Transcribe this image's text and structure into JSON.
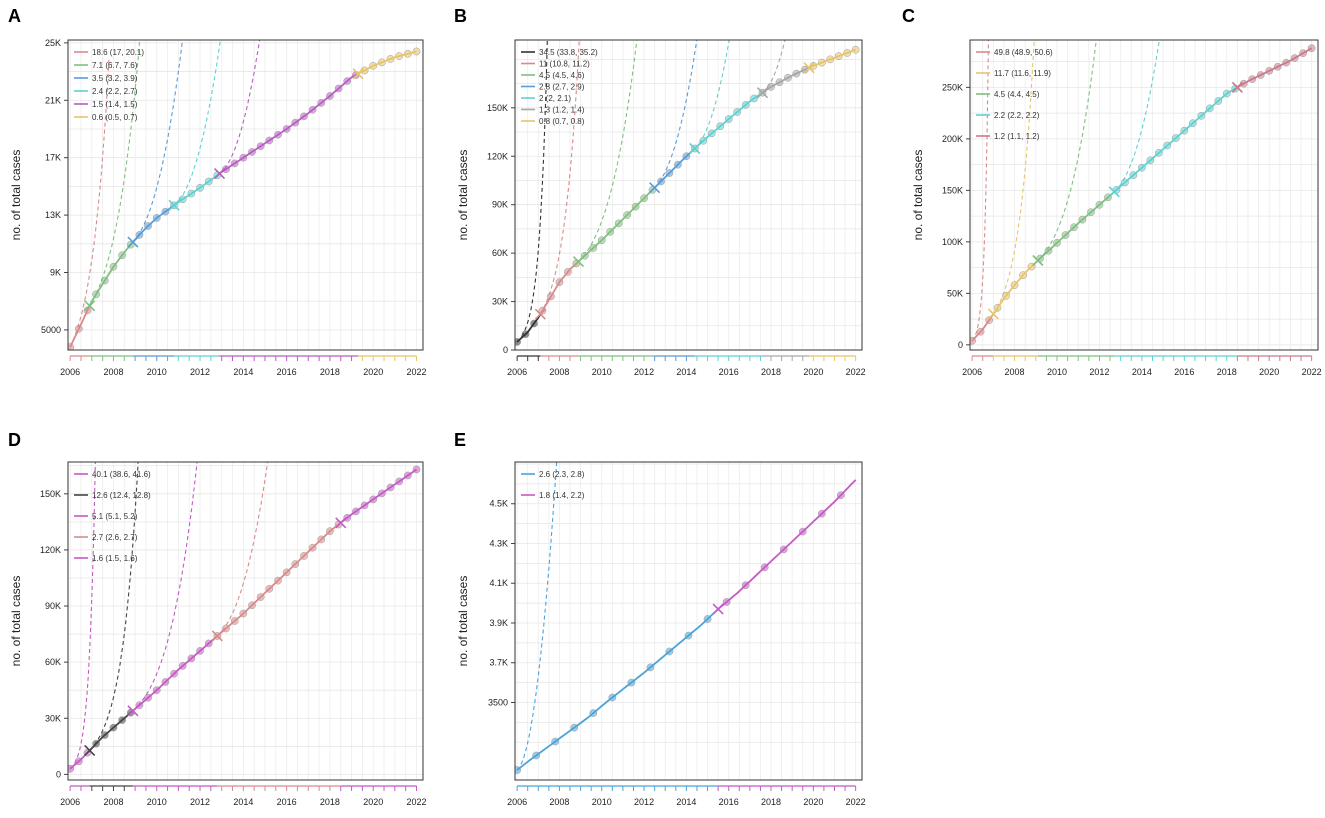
{
  "figure": {
    "panel_letters": [
      "A",
      "B",
      "C",
      "D",
      "E"
    ]
  },
  "chart_data": [
    {
      "panel": "A",
      "type": "line",
      "ylabel": "no. of total cases",
      "xlabel": "",
      "x_ticks": [
        2006,
        2008,
        2010,
        2012,
        2014,
        2016,
        2018,
        2020,
        2022
      ],
      "x_tick_labels": [
        "2006",
        "2008",
        "2010",
        "2012",
        "2014",
        "2016",
        "2018",
        "2020",
        "2022"
      ],
      "y_ticks": [
        5000,
        9000,
        13000,
        17000,
        21000,
        25000
      ],
      "y_tick_labels": [
        "5000",
        "9K",
        "13K",
        "17K",
        "21K",
        "25K"
      ],
      "xlim": [
        2005.9,
        2022.3
      ],
      "ylim": [
        3600,
        25200
      ],
      "obs_x_range": [
        2006,
        2022
      ],
      "curve": [
        [
          2006,
          3800
        ],
        [
          2006.5,
          5400
        ],
        [
          2007,
          7000
        ],
        [
          2007.5,
          8200
        ],
        [
          2008,
          9400
        ],
        [
          2008.5,
          10400
        ],
        [
          2009,
          11300
        ],
        [
          2009.5,
          12100
        ],
        [
          2010,
          12800
        ],
        [
          2011,
          13900
        ],
        [
          2012,
          14900
        ],
        [
          2013,
          16000
        ],
        [
          2014,
          17000
        ],
        [
          2015,
          18000
        ],
        [
          2016,
          19000
        ],
        [
          2017,
          20100
        ],
        [
          2018,
          21300
        ],
        [
          2019,
          22600
        ],
        [
          2020,
          23400
        ],
        [
          2021,
          24000
        ],
        [
          2022,
          24400
        ]
      ],
      "segments": [
        {
          "label": "18.6 (17, 20.1)",
          "color": "#d98a8a",
          "x0": 2006,
          "x1": 2006.9,
          "proj_to": 2007.8
        },
        {
          "label": "7.1 (6.7, 7.6)",
          "color": "#7fbf7f",
          "x0": 2006.9,
          "x1": 2008.9,
          "proj_to": 2010.8
        },
        {
          "label": "3.5 (3.2, 3.9)",
          "color": "#5b9bd5",
          "x0": 2008.9,
          "x1": 2010.8,
          "proj_to": 2015.0
        },
        {
          "label": "2.4 (2.2, 2.7)",
          "color": "#5fd0d0",
          "x0": 2010.8,
          "x1": 2012.9,
          "proj_to": 2018.0
        },
        {
          "label": "1.5 (1.4, 1.5)",
          "color": "#b85cc4",
          "x0": 2012.9,
          "x1": 2019.3,
          "proj_to": 2021.5
        },
        {
          "label": "0.6 (0.5, 0.7)",
          "color": "#e8c468",
          "x0": 2019.3,
          "x1": 2022,
          "proj_to": 2022
        }
      ]
    },
    {
      "panel": "B",
      "type": "line",
      "ylabel": "no. of total cases",
      "xlabel": "",
      "x_ticks": [
        2006,
        2008,
        2010,
        2012,
        2014,
        2016,
        2018,
        2020,
        2022
      ],
      "x_tick_labels": [
        "2006",
        "2008",
        "2010",
        "2012",
        "2014",
        "2016",
        "2018",
        "2020",
        "2022"
      ],
      "y_ticks": [
        0,
        30000,
        60000,
        90000,
        120000,
        150000
      ],
      "y_tick_labels": [
        "0",
        "30K",
        "60K",
        "90K",
        "120K",
        "150K"
      ],
      "xlim": [
        2005.9,
        2022.3
      ],
      "ylim": [
        0,
        192000
      ],
      "obs_x_range": [
        2006,
        2022
      ],
      "curve": [
        [
          2006,
          5000
        ],
        [
          2006.5,
          11000
        ],
        [
          2007,
          20000
        ],
        [
          2007.5,
          31000
        ],
        [
          2008,
          42000
        ],
        [
          2008.5,
          50000
        ],
        [
          2009,
          56000
        ],
        [
          2010,
          68000
        ],
        [
          2011,
          81000
        ],
        [
          2012,
          94000
        ],
        [
          2013,
          107000
        ],
        [
          2014,
          120000
        ],
        [
          2015,
          132000
        ],
        [
          2016,
          143000
        ],
        [
          2017,
          154000
        ],
        [
          2018,
          163000
        ],
        [
          2019,
          170000
        ],
        [
          2020,
          176000
        ],
        [
          2021,
          181000
        ],
        [
          2022,
          186000
        ]
      ],
      "segments": [
        {
          "label": "34.5 (33.8, 35.2)",
          "color": "#333333",
          "x0": 2006,
          "x1": 2007.1,
          "proj_to": 2007.6
        },
        {
          "label": "11 (10.8, 11.2)",
          "color": "#d98a8a",
          "x0": 2007.1,
          "x1": 2008.9,
          "proj_to": 2010.3
        },
        {
          "label": "4.5 (4.5, 4.6)",
          "color": "#7fbf7f",
          "x0": 2008.9,
          "x1": 2012.5,
          "proj_to": 2015.0
        },
        {
          "label": "2.8 (2.7, 2.9)",
          "color": "#5b9bd5",
          "x0": 2012.5,
          "x1": 2014.4,
          "proj_to": 2018.0
        },
        {
          "label": "2 (2, 2.1)",
          "color": "#5fd0d0",
          "x0": 2014.4,
          "x1": 2017.6,
          "proj_to": 2020.5
        },
        {
          "label": "1.3 (1.2, 1.4)",
          "color": "#a6a6a6",
          "x0": 2017.6,
          "x1": 2019.8,
          "proj_to": 2022
        },
        {
          "label": "0.8 (0.7, 0.8)",
          "color": "#e8c468",
          "x0": 2019.8,
          "x1": 2022,
          "proj_to": 2022
        }
      ]
    },
    {
      "panel": "C",
      "type": "line",
      "ylabel": "no. of total cases",
      "xlabel": "",
      "x_ticks": [
        2006,
        2008,
        2010,
        2012,
        2014,
        2016,
        2018,
        2020,
        2022
      ],
      "x_tick_labels": [
        "2006",
        "2008",
        "2010",
        "2012",
        "2014",
        "2016",
        "2018",
        "2020",
        "2022"
      ],
      "y_ticks": [
        0,
        50000,
        100000,
        150000,
        200000,
        250000
      ],
      "y_tick_labels": [
        "0",
        "50K",
        "100K",
        "150K",
        "200K",
        "250K"
      ],
      "xlim": [
        2005.9,
        2022.3
      ],
      "ylim": [
        -5000,
        296000
      ],
      "obs_x_range": [
        2006,
        2022
      ],
      "curve": [
        [
          2006,
          4000
        ],
        [
          2006.5,
          15000
        ],
        [
          2007,
          30000
        ],
        [
          2007.5,
          45000
        ],
        [
          2008,
          58000
        ],
        [
          2008.5,
          70000
        ],
        [
          2009,
          80000
        ],
        [
          2010,
          99000
        ],
        [
          2011,
          118000
        ],
        [
          2012,
          136000
        ],
        [
          2013,
          154000
        ],
        [
          2014,
          172000
        ],
        [
          2015,
          190000
        ],
        [
          2016,
          208000
        ],
        [
          2017,
          226000
        ],
        [
          2018,
          244000
        ],
        [
          2019,
          256000
        ],
        [
          2020,
          266000
        ],
        [
          2021,
          276000
        ],
        [
          2022,
          288000
        ]
      ],
      "segments": [
        {
          "label": "49.8 (48.9, 50.6)",
          "color": "#d98a8a",
          "x0": 2006,
          "x1": 2007.0,
          "proj_to": 2008.3
        },
        {
          "label": "11.7 (11.6, 11.9)",
          "color": "#e8c468",
          "x0": 2007.0,
          "x1": 2009.1,
          "proj_to": 2011.8
        },
        {
          "label": "4.5 (4.4, 4.5)",
          "color": "#7fbf7f",
          "x0": 2009.1,
          "x1": 2012.7,
          "proj_to": 2017.0
        },
        {
          "label": "2.2 (2.2, 2.2)",
          "color": "#5fd0d0",
          "x0": 2012.7,
          "x1": 2018.5,
          "proj_to": 2022
        },
        {
          "label": "1.2 (1.1, 1.2)",
          "color": "#c97a8a",
          "x0": 2018.5,
          "x1": 2022,
          "proj_to": 2022
        }
      ]
    },
    {
      "panel": "D",
      "type": "line",
      "ylabel": "no. of total cases",
      "xlabel": "",
      "x_ticks": [
        2006,
        2008,
        2010,
        2012,
        2014,
        2016,
        2018,
        2020,
        2022
      ],
      "x_tick_labels": [
        "2006",
        "2008",
        "2010",
        "2012",
        "2014",
        "2016",
        "2018",
        "2020",
        "2022"
      ],
      "y_ticks": [
        0,
        30000,
        60000,
        90000,
        120000,
        150000
      ],
      "y_tick_labels": [
        "0",
        "30K",
        "60K",
        "90K",
        "120K",
        "150K"
      ],
      "xlim": [
        2005.9,
        2022.3
      ],
      "ylim": [
        -3000,
        167000
      ],
      "obs_x_range": [
        2006,
        2022
      ],
      "curve": [
        [
          2006,
          3000
        ],
        [
          2006.5,
          8000
        ],
        [
          2007,
          14000
        ],
        [
          2007.5,
          20000
        ],
        [
          2008,
          25000
        ],
        [
          2008.5,
          30000
        ],
        [
          2009,
          35000
        ],
        [
          2010,
          45000
        ],
        [
          2011,
          56000
        ],
        [
          2012,
          66000
        ],
        [
          2013,
          76000
        ],
        [
          2014,
          86000
        ],
        [
          2015,
          97000
        ],
        [
          2016,
          108000
        ],
        [
          2017,
          119000
        ],
        [
          2018,
          130000
        ],
        [
          2019,
          139000
        ],
        [
          2020,
          147000
        ],
        [
          2021,
          155000
        ],
        [
          2022,
          163000
        ]
      ],
      "segments": [
        {
          "label": "40.1 (38.6, 41.6)",
          "color": "#c45ac4",
          "x0": 2006,
          "x1": 2006.9,
          "proj_to": 2008.5
        },
        {
          "label": "12.6 (12.4, 12.8)",
          "color": "#444444",
          "x0": 2006.9,
          "x1": 2008.9,
          "proj_to": 2011.4
        },
        {
          "label": "5.1 (5.1, 5.2)",
          "color": "#c45ac4",
          "x0": 2008.9,
          "x1": 2012.8,
          "proj_to": 2016.0
        },
        {
          "label": "2.7 (2.6, 2.7)",
          "color": "#d98a8a",
          "x0": 2012.8,
          "x1": 2018.5,
          "proj_to": 2021.0
        },
        {
          "label": "1.6 (1.5, 1.6)",
          "color": "#c45ac4",
          "x0": 2018.5,
          "x1": 2022,
          "proj_to": 2022
        }
      ]
    },
    {
      "panel": "E",
      "type": "line",
      "ylabel": "no. of total cases",
      "xlabel": "",
      "x_ticks": [
        2006,
        2008,
        2010,
        2012,
        2014,
        2016,
        2018,
        2020,
        2022
      ],
      "x_tick_labels": [
        "2006",
        "2008",
        "2010",
        "2012",
        "2014",
        "2016",
        "2018",
        "2020",
        "2022"
      ],
      "y_ticks": [
        3500,
        3700,
        3900,
        4100,
        4300,
        4500
      ],
      "y_tick_labels": [
        "3500",
        "3.7K",
        "3.9K",
        "4.1K",
        "4.3K",
        "4.5K"
      ],
      "xlim": [
        2005.9,
        2022.3
      ],
      "ylim": [
        3110,
        4710
      ],
      "obs_x_range": [
        2006,
        2022
      ],
      "curve": [
        [
          2006,
          3160
        ],
        [
          2006.6,
          3210
        ],
        [
          2007.5,
          3280
        ],
        [
          2008.4,
          3350
        ],
        [
          2009.3,
          3420
        ],
        [
          2010.2,
          3500
        ],
        [
          2011.1,
          3575
        ],
        [
          2012,
          3650
        ],
        [
          2012.9,
          3730
        ],
        [
          2013.8,
          3810
        ],
        [
          2014.7,
          3890
        ],
        [
          2015.5,
          3970
        ],
        [
          2016.4,
          4050
        ],
        [
          2017.3,
          4140
        ],
        [
          2018.2,
          4230
        ],
        [
          2019.1,
          4320
        ],
        [
          2020,
          4410
        ],
        [
          2021,
          4510
        ],
        [
          2022,
          4620
        ]
      ],
      "segments": [
        {
          "label": "2.6 (2.3, 2.8)",
          "color": "#4aa3d8",
          "x0": 2006,
          "x1": 2015.5,
          "proj_to": 2020.8
        },
        {
          "label": "1.8 (1.4, 2.2)",
          "color": "#c45ac4",
          "x0": 2015.5,
          "x1": 2022,
          "proj_to": 2022
        }
      ]
    }
  ]
}
